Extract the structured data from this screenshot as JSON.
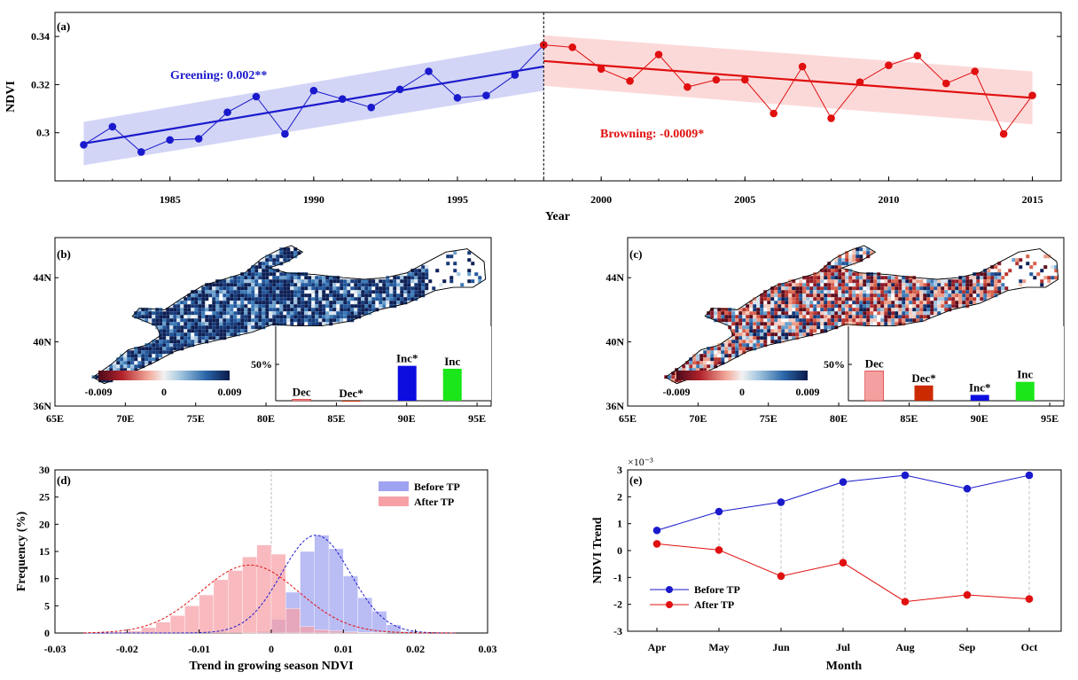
{
  "colors": {
    "before": "#1a1acc",
    "after": "#e01010",
    "before_band": "#c8cbf4",
    "after_band": "#fbd0d0",
    "hist_before": "#9fa2f0",
    "hist_after": "#f6a0a6",
    "bar_dec_b": "#f4a0a0",
    "bar_dec_star": "#cc2a00",
    "bar_inc_star": "#0d0de0",
    "bar_inc": "#1ae61a"
  },
  "chart_data": [
    {
      "id": "a",
      "type": "line",
      "panel_label": "(a)",
      "xlabel": "Year",
      "ylabel": "NDVI",
      "xlim": [
        1981,
        2016
      ],
      "ylim": [
        0.28,
        0.35
      ],
      "xticks": [
        1985,
        1990,
        1995,
        2000,
        2005,
        2010,
        2015
      ],
      "yticks": [
        0.3,
        0.32,
        0.34
      ],
      "ytick_labels": [
        "0.3",
        "0.32",
        "0.34"
      ],
      "turning_point": 1998,
      "series": [
        {
          "x": [
            1982,
            1983,
            1984,
            1985,
            1986,
            1987,
            1988,
            1989,
            1990,
            1991,
            1992,
            1993,
            1994,
            1995,
            1996,
            1997,
            1998
          ],
          "values": [
            0.295,
            0.3025,
            0.292,
            0.297,
            0.2975,
            0.3085,
            0.315,
            0.2995,
            0.3175,
            0.314,
            0.3105,
            0.318,
            0.3255,
            0.3145,
            0.3155,
            0.324,
            0.3365
          ],
          "trend": [
            0.2955,
            0.3275
          ],
          "band_lower": [
            0.2865,
            0.3175
          ],
          "band_upper": [
            0.3045,
            0.3375
          ]
        },
        {
          "x": [
            1998,
            1999,
            2000,
            2001,
            2002,
            2003,
            2004,
            2005,
            2006,
            2007,
            2008,
            2009,
            2010,
            2011,
            2012,
            2013,
            2014,
            2015
          ],
          "values": [
            0.3365,
            0.3355,
            0.3265,
            0.3215,
            0.3325,
            0.319,
            0.322,
            0.322,
            0.308,
            0.3275,
            0.306,
            0.321,
            0.328,
            0.332,
            0.3205,
            0.3255,
            0.2995,
            0.3155
          ],
          "trend": [
            0.3298,
            0.3145
          ],
          "band_lower": [
            0.3195,
            0.3035
          ],
          "band_upper": [
            0.3405,
            0.3255
          ]
        }
      ],
      "annotations": [
        "Greening: 0.002**",
        "Browning: -0.0009*"
      ]
    },
    {
      "id": "b",
      "type": "bar",
      "panel_label": "(b)",
      "xticks": [
        "65E",
        "70E",
        "75E",
        "80E",
        "85E",
        "90E",
        "95E"
      ],
      "yticks": [
        "44N",
        "40N",
        "36N"
      ],
      "colorbar_ticks": [
        "-0.009",
        "0",
        "0.009"
      ],
      "inset_ytick": "50%",
      "categories": [
        "Dec",
        "Dec*",
        "Inc*",
        "Inc"
      ],
      "values": [
        2,
        0,
        48,
        44
      ]
    },
    {
      "id": "c",
      "type": "bar",
      "panel_label": "(c)",
      "xticks": [
        "65E",
        "70E",
        "75E",
        "80E",
        "85E",
        "90E",
        "95E"
      ],
      "yticks": [
        "44N",
        "40N",
        "36N"
      ],
      "colorbar_ticks": [
        "-0.009",
        "0",
        "0.009"
      ],
      "inset_ytick": "50%",
      "categories": [
        "Dec",
        "Dec*",
        "Inc*",
        "Inc"
      ],
      "values": [
        41,
        21,
        8,
        26
      ]
    },
    {
      "id": "d",
      "type": "bar",
      "panel_label": "(d)",
      "xlabel": "Trend in growing season NDVI",
      "ylabel": "Frequency (%)",
      "xlim": [
        -0.03,
        0.03
      ],
      "ylim": [
        0,
        30
      ],
      "xticks": [
        -0.03,
        -0.02,
        -0.01,
        0,
        0.01,
        0.02,
        0.03
      ],
      "xtick_labels": [
        "-0.03",
        "-0.02",
        "-0.01",
        "0",
        "0.01",
        "0.02",
        "0.03"
      ],
      "yticks": [
        0,
        5,
        10,
        15,
        20,
        25,
        30
      ],
      "bin_edges": [
        -0.026,
        -0.024,
        -0.022,
        -0.02,
        -0.018,
        -0.016,
        -0.014,
        -0.012,
        -0.01,
        -0.008,
        -0.006,
        -0.004,
        -0.002,
        0,
        0.002,
        0.004,
        0.006,
        0.008,
        0.01,
        0.012,
        0.014,
        0.016,
        0.018,
        0.02,
        0.022,
        0.024,
        0.026
      ],
      "series": [
        {
          "name": "Before TP",
          "values": [
            0,
            0,
            0,
            0,
            0,
            0,
            0,
            0,
            0,
            0,
            0,
            0.1,
            0.3,
            2.5,
            7.5,
            15,
            18,
            15.5,
            10.5,
            6.5,
            4,
            1.5,
            0.3,
            0.1,
            0,
            0
          ],
          "fit": {
            "mean": 0.0062,
            "sd": 0.0048,
            "peak": 18
          }
        },
        {
          "name": "After TP",
          "values": [
            0.1,
            0.1,
            0.2,
            0.4,
            1,
            2,
            3.2,
            5,
            7,
            9.8,
            11.5,
            14,
            16.2,
            14.5,
            4.5,
            1.2,
            0.6,
            0.4,
            0.2,
            0.1,
            0.1,
            0,
            0,
            0,
            0,
            0
          ],
          "fit": {
            "mean": -0.003,
            "sd": 0.0068,
            "peak": 12.5
          }
        }
      ]
    },
    {
      "id": "e",
      "type": "line",
      "panel_label": "(e)",
      "xlabel": "Month",
      "ylabel": "NDVI Trend",
      "exponent_label": "×10⁻³",
      "categories": [
        "Apr",
        "May",
        "Jun",
        "Jul",
        "Aug",
        "Sep",
        "Oct"
      ],
      "ylim": [
        -3,
        3
      ],
      "yticks": [
        -3,
        -2,
        -1,
        0,
        1,
        2,
        3
      ],
      "series": [
        {
          "name": "Before TP",
          "values": [
            0.75,
            1.45,
            1.8,
            2.55,
            2.8,
            2.3,
            2.8
          ]
        },
        {
          "name": "After TP",
          "values": [
            0.25,
            0.02,
            -0.95,
            -0.45,
            -1.9,
            -1.65,
            -1.8
          ]
        }
      ]
    }
  ]
}
